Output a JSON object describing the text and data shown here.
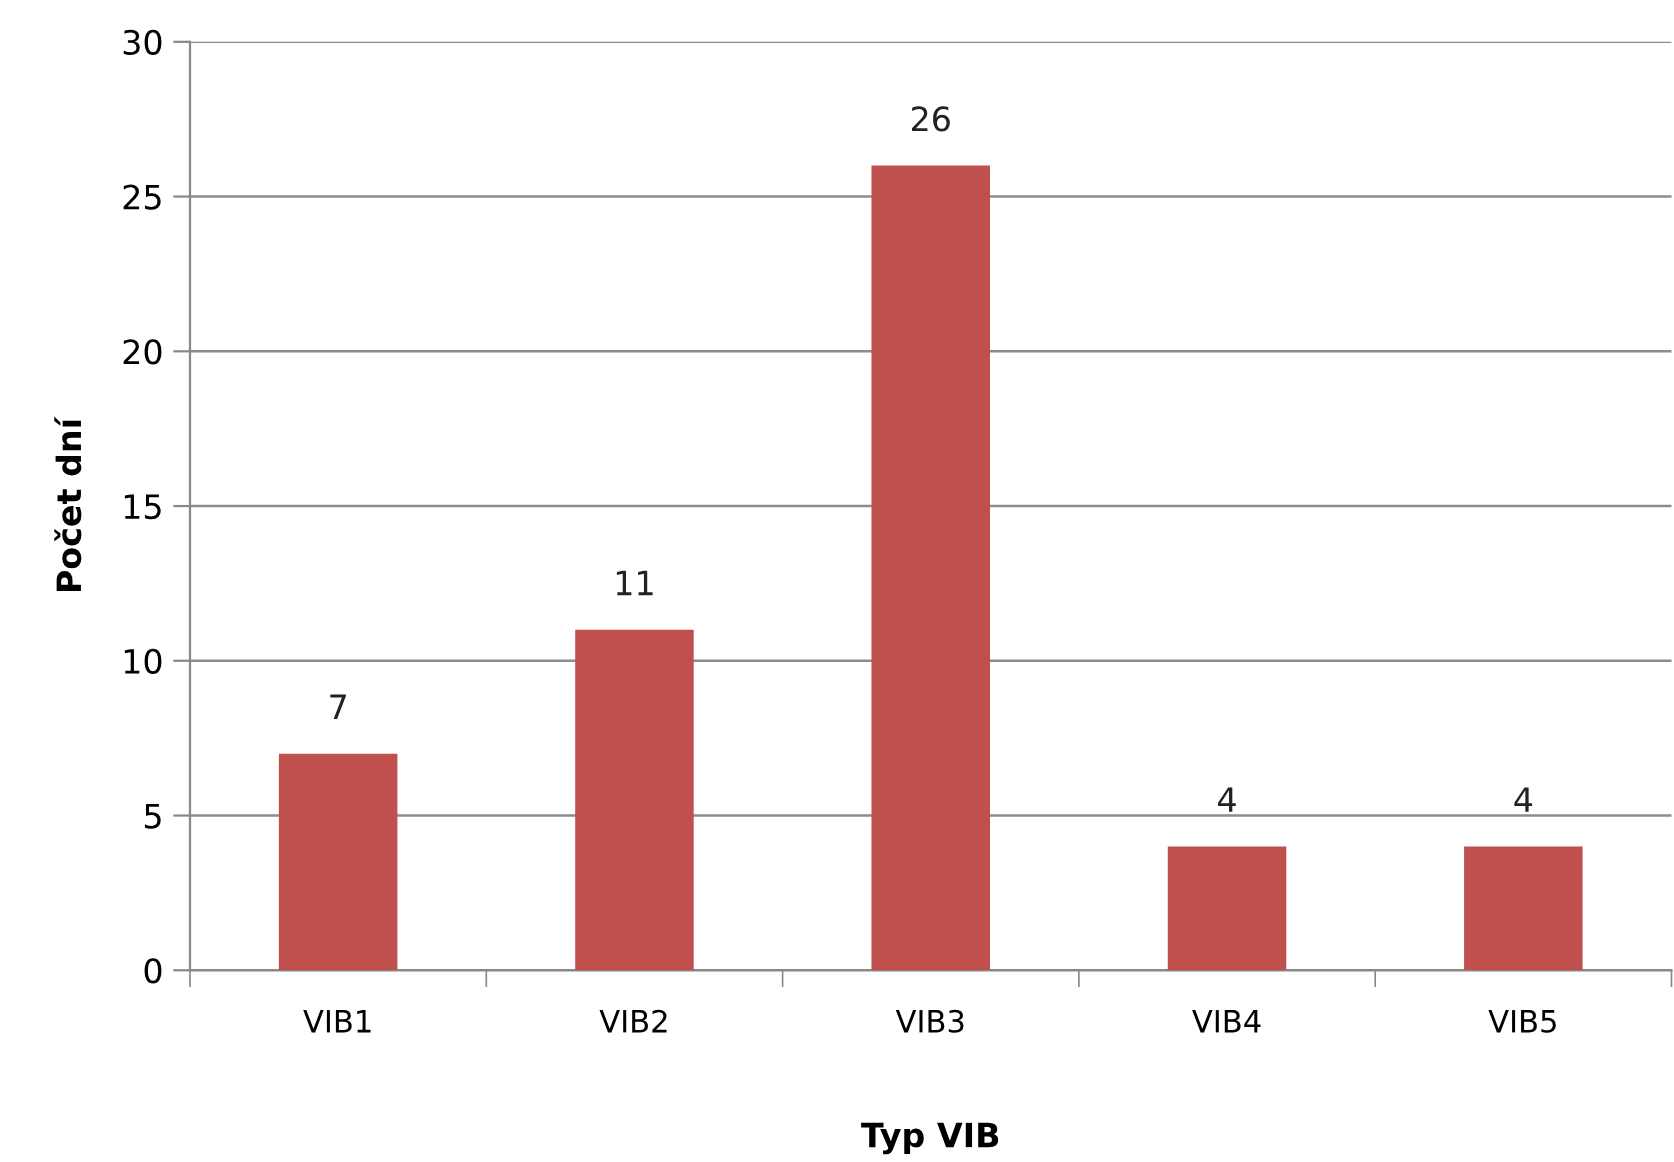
{
  "chart_data": {
    "type": "bar",
    "xlabel": "Typ VIB",
    "ylabel": "Počet dní",
    "categories": [
      "VIB1",
      "VIB2",
      "VIB3",
      "VIB4",
      "VIB5"
    ],
    "values": [
      7,
      11,
      26,
      4,
      4
    ],
    "color": "#c0504d",
    "ylim": [
      0,
      30
    ],
    "yticks": [
      0,
      5,
      10,
      15,
      20,
      25,
      30
    ],
    "grid": "y",
    "data_labels": true,
    "legend": false
  }
}
